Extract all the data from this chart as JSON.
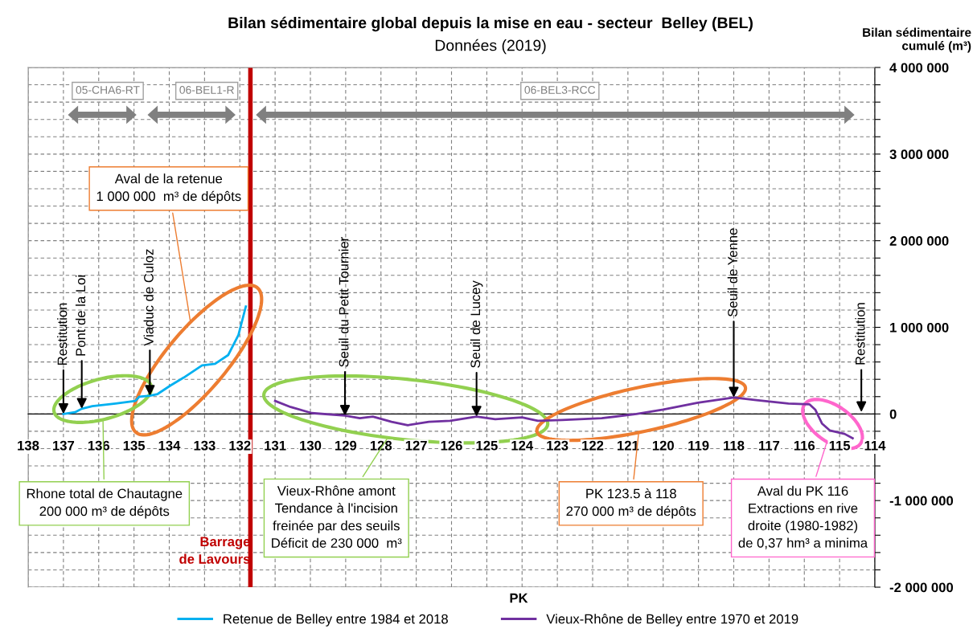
{
  "chart_data": {
    "type": "line",
    "title": "Bilan sédimentaire global depuis la mise en eau - secteur  Belley (BEL)",
    "subtitle": "Données (2019)",
    "xlabel": "PK",
    "ylabel": "Bilan sédimentaire\ncumulé (m³)",
    "series": [
      {
        "name": "Retenue de Belley entre 1984 et 2018",
        "color": "#00b0f0",
        "x": [
          137.0,
          136.67,
          136.48,
          136.18,
          135.52,
          134.96,
          134.85,
          134.55,
          134.33,
          133.96,
          133.59,
          133.07,
          132.7,
          132.33,
          132.04,
          131.83
        ],
        "values": [
          0,
          20000,
          60000,
          90000,
          120000,
          150000,
          200000,
          210000,
          230000,
          330000,
          420000,
          560000,
          580000,
          680000,
          910000,
          1240000
        ]
      },
      {
        "name": "Vieux-Rhône de Belley entre 1970 et 2019",
        "color": "#7030a0",
        "x": [
          131.0,
          130.56,
          129.96,
          129.02,
          128.6,
          128.23,
          127.7,
          127.24,
          126.64,
          126.04,
          125.29,
          124.76,
          124.0,
          123.55,
          122.87,
          121.74,
          120.76,
          120.0,
          119.02,
          118.0,
          117.36,
          116.45,
          115.85,
          115.69,
          115.5,
          115.28,
          114.86,
          114.63
        ],
        "values": [
          150000,
          80000,
          10000,
          -20000,
          -50000,
          -30000,
          -90000,
          -130000,
          -90000,
          -80000,
          -30000,
          -60000,
          -40000,
          -80000,
          -70000,
          -50000,
          0,
          50000,
          130000,
          190000,
          160000,
          120000,
          110000,
          50000,
          -110000,
          -190000,
          -230000,
          -280000
        ]
      }
    ],
    "xlim": [
      138,
      114
    ],
    "xticks": [
      138,
      137,
      136,
      135,
      134,
      133,
      132,
      131,
      130,
      129,
      128,
      127,
      126,
      125,
      124,
      123,
      122,
      121,
      120,
      119,
      118,
      117,
      116,
      115,
      114
    ],
    "ylim": [
      -2000000,
      4000000
    ],
    "yticks": [
      {
        "value": -2000000,
        "label": "-2 000 000"
      },
      {
        "value": -1800000,
        "label": null
      },
      {
        "value": -1600000,
        "label": null
      },
      {
        "value": -1400000,
        "label": null
      },
      {
        "value": -1200000,
        "label": null
      },
      {
        "value": -1000000,
        "label": "-1 000 000"
      },
      {
        "value": -800000,
        "label": null
      },
      {
        "value": -600000,
        "label": null
      },
      {
        "value": -400000,
        "label": null
      },
      {
        "value": -200000,
        "label": null
      },
      0,
      {
        "value": 200000,
        "label": null
      },
      {
        "value": 400000,
        "label": null
      },
      {
        "value": 600000,
        "label": null
      },
      {
        "value": 800000,
        "label": null
      },
      {
        "value": 1000000,
        "label": "1 000 000"
      },
      {
        "value": 1200000,
        "label": null
      },
      {
        "value": 1400000,
        "label": null
      },
      {
        "value": 1600000,
        "label": null
      },
      {
        "value": 1800000,
        "label": null
      },
      {
        "value": 2000000,
        "label": "2 000 000"
      },
      {
        "value": 2200000,
        "label": null
      },
      {
        "value": 2400000,
        "label": null
      },
      {
        "value": 2600000,
        "label": null
      },
      {
        "value": 2800000,
        "label": null
      },
      {
        "value": 3000000,
        "label": "3 000 000"
      },
      {
        "value": 3200000,
        "label": null
      },
      {
        "value": 3400000,
        "label": null
      },
      {
        "value": 3600000,
        "label": null
      },
      {
        "value": 3800000,
        "label": null
      },
      {
        "value": 4000000,
        "label": "4 000 000"
      }
    ],
    "grid": true,
    "legend": "bottom",
    "marker": "none",
    "line_style": "solid",
    "ref_lines": [
      {
        "axis": "x",
        "value": 131.7,
        "label": "Barrage\nde Lavours",
        "color": "#c00000"
      }
    ],
    "annotations": [
      {
        "text": "Restitution",
        "x": 137.0,
        "y": 0
      },
      {
        "text": "Pont de la Loi",
        "x": 136.48,
        "y": 60000
      },
      {
        "text": "Viaduc de Culoz",
        "x": 134.55,
        "y": 210000
      },
      {
        "text": "Seuil du Petit Tournier",
        "x": 129.02,
        "y": -20000
      },
      {
        "text": "Seuil de Lucey",
        "x": 125.29,
        "y": -30000
      },
      {
        "text": "Seuil de Yenne",
        "x": 118.0,
        "y": 190000
      },
      "Restitution",
      "Aval de la retenue\n1 000 000  m³ de dépôts",
      "Rhone total de Chautagne\n200 000 m³ de dépôts",
      "Vieux-Rhône amont\nTendance à l'incision\nfreinée par des seuils\nDéficit de 230 000  m³",
      "PK 123.5 à 118\n270 000 m³ de dépôts",
      "Aval du PK 116\nExtractions en rive\ndroite (1980-1982)\nde 0,37 hm³ a minima",
      "05-CHA6-RT",
      "06-BEL1-R",
      "06-BEL3-RCC"
    ]
  }
}
